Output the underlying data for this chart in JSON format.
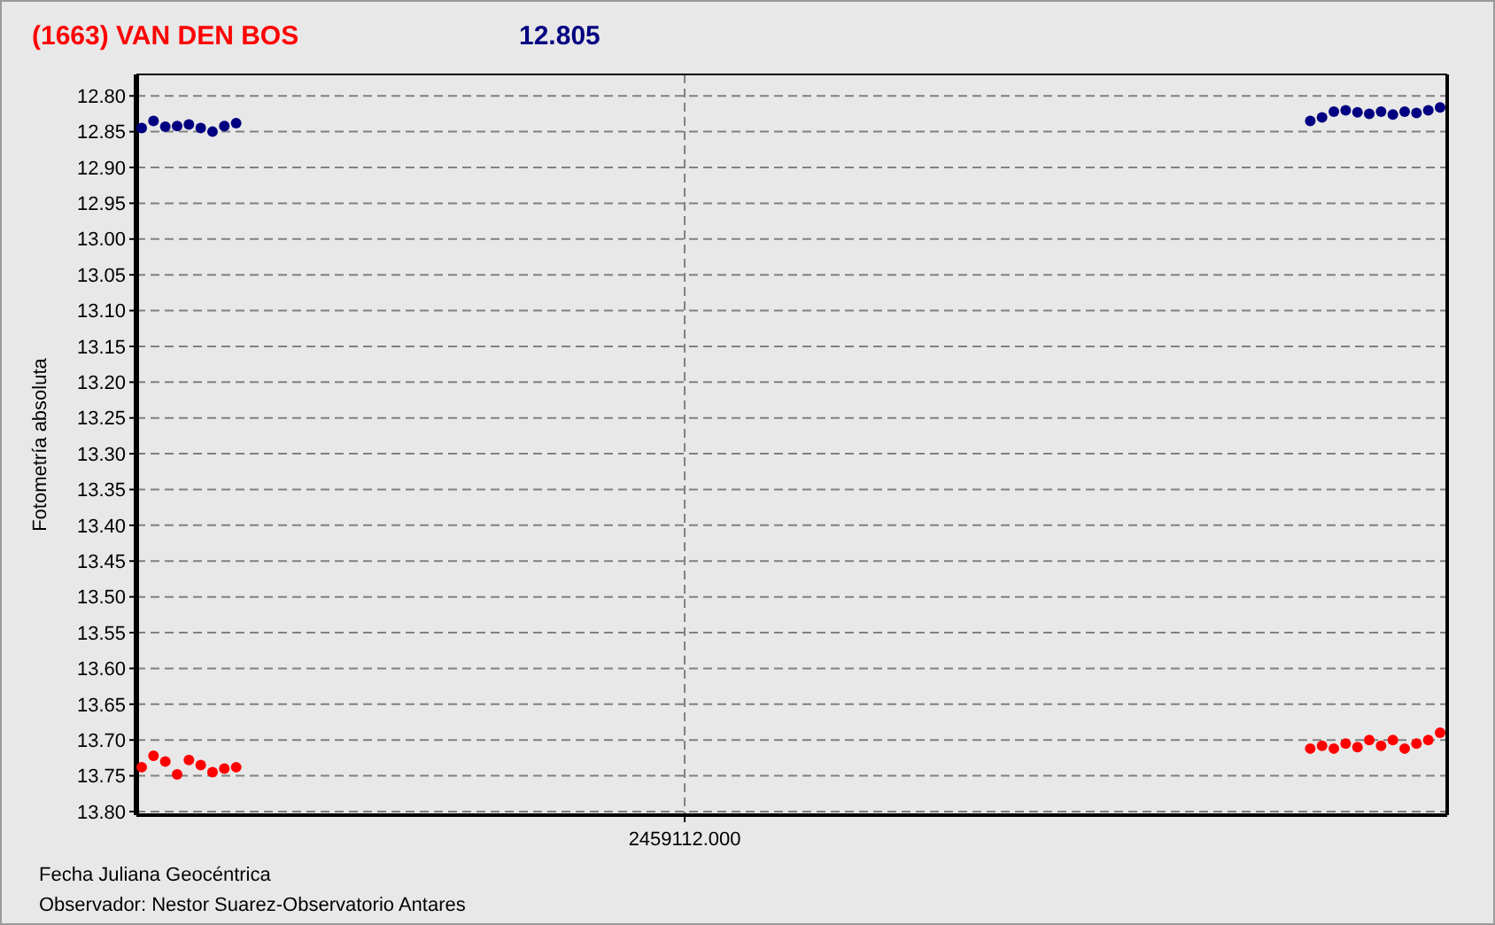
{
  "chart_data": {
    "type": "scatter",
    "title": "(1663) VAN DEN BOS",
    "subtitle": "12.805",
    "xlabel": "Fecha Juliana Geocéntrica",
    "ylabel": "Fotometría absoluta",
    "annotations": [
      "Observador: Nestor Suarez-Observatorio Antares"
    ],
    "categories": [
      null,
      null,
      null,
      null,
      null,
      null,
      null,
      null,
      null,
      null,
      null,
      null,
      null,
      null,
      null,
      null,
      null,
      null,
      null,
      null,
      null,
      null,
      null,
      null,
      null,
      null,
      null,
      null,
      null,
      null,
      null,
      null,
      null,
      null,
      null,
      null,
      null,
      null,
      null,
      null,
      null,
      null,
      null,
      null,
      null,
      null,
      "2459112.000",
      null,
      null,
      null,
      null,
      null,
      null,
      null,
      null,
      null,
      null,
      null,
      null,
      null,
      null,
      null,
      null,
      null,
      null,
      null,
      null,
      null,
      null,
      null,
      null,
      null,
      null,
      null,
      null,
      null,
      null,
      null,
      null,
      null,
      null,
      null,
      null,
      null,
      null,
      null,
      null,
      null,
      null,
      null,
      null,
      null,
      null,
      null,
      null,
      null,
      null,
      null,
      null,
      null,
      null,
      null,
      null,
      null,
      null,
      null,
      null,
      null,
      null,
      null,
      null
    ],
    "ylim": [
      13.805,
      12.77
    ],
    "yticks": [
      {
        "value": 12.8,
        "label": "12.80"
      },
      {
        "value": 12.85,
        "label": "12.85"
      },
      {
        "value": 12.9,
        "label": "12.90"
      },
      {
        "value": 12.95,
        "label": "12.95"
      },
      {
        "value": 13.0,
        "label": "13.00"
      },
      {
        "value": 13.05,
        "label": "13.05"
      },
      {
        "value": 13.1,
        "label": "13.10"
      },
      {
        "value": 13.15,
        "label": "13.15"
      },
      {
        "value": 13.2,
        "label": "13.20"
      },
      {
        "value": 13.25,
        "label": "13.25"
      },
      {
        "value": 13.3,
        "label": "13.30"
      },
      {
        "value": 13.35,
        "label": "13.35"
      },
      {
        "value": 13.4,
        "label": "13.40"
      },
      {
        "value": 13.45,
        "label": "13.45"
      },
      {
        "value": 13.5,
        "label": "13.50"
      },
      {
        "value": 13.55,
        "label": "13.55"
      },
      {
        "value": 13.6,
        "label": "13.60"
      },
      {
        "value": 13.65,
        "label": "13.65"
      },
      {
        "value": 13.7,
        "label": "13.70"
      },
      {
        "value": 13.75,
        "label": "13.75"
      },
      {
        "value": 13.8,
        "label": "13.80"
      }
    ],
    "grid": true,
    "marker": "circle",
    "series": [
      {
        "color": "#000080",
        "values": [
          12.845,
          12.835,
          12.843,
          12.842,
          12.84,
          12.845,
          12.85,
          12.842,
          12.838,
          null,
          null,
          null,
          null,
          null,
          null,
          null,
          null,
          null,
          null,
          null,
          null,
          null,
          null,
          null,
          null,
          null,
          null,
          null,
          null,
          null,
          null,
          null,
          null,
          null,
          null,
          null,
          null,
          null,
          null,
          null,
          null,
          null,
          null,
          null,
          null,
          null,
          null,
          null,
          null,
          null,
          null,
          null,
          null,
          null,
          null,
          null,
          null,
          null,
          null,
          null,
          null,
          null,
          null,
          null,
          null,
          null,
          null,
          null,
          null,
          null,
          null,
          null,
          null,
          null,
          null,
          null,
          null,
          null,
          null,
          null,
          null,
          null,
          null,
          null,
          null,
          null,
          null,
          null,
          null,
          null,
          null,
          null,
          null,
          null,
          null,
          null,
          null,
          null,
          null,
          12.835,
          12.83,
          12.822,
          12.82,
          12.823,
          12.825,
          12.822,
          12.826,
          12.822,
          12.824,
          12.82,
          12.816
        ]
      },
      {
        "color": "#ff0000",
        "values": [
          13.738,
          13.722,
          13.73,
          13.748,
          13.728,
          13.735,
          13.745,
          13.74,
          13.738,
          null,
          null,
          null,
          null,
          null,
          null,
          null,
          null,
          null,
          null,
          null,
          null,
          null,
          null,
          null,
          null,
          null,
          null,
          null,
          null,
          null,
          null,
          null,
          null,
          null,
          null,
          null,
          null,
          null,
          null,
          null,
          null,
          null,
          null,
          null,
          null,
          null,
          null,
          null,
          null,
          null,
          null,
          null,
          null,
          null,
          null,
          null,
          null,
          null,
          null,
          null,
          null,
          null,
          null,
          null,
          null,
          null,
          null,
          null,
          null,
          null,
          null,
          null,
          null,
          null,
          null,
          null,
          null,
          null,
          null,
          null,
          null,
          null,
          null,
          null,
          null,
          null,
          null,
          null,
          null,
          null,
          null,
          null,
          null,
          null,
          null,
          null,
          null,
          null,
          null,
          13.712,
          13.708,
          13.712,
          13.705,
          13.71,
          13.7,
          13.708,
          13.7,
          13.712,
          13.705,
          13.7,
          13.69
        ]
      }
    ]
  }
}
